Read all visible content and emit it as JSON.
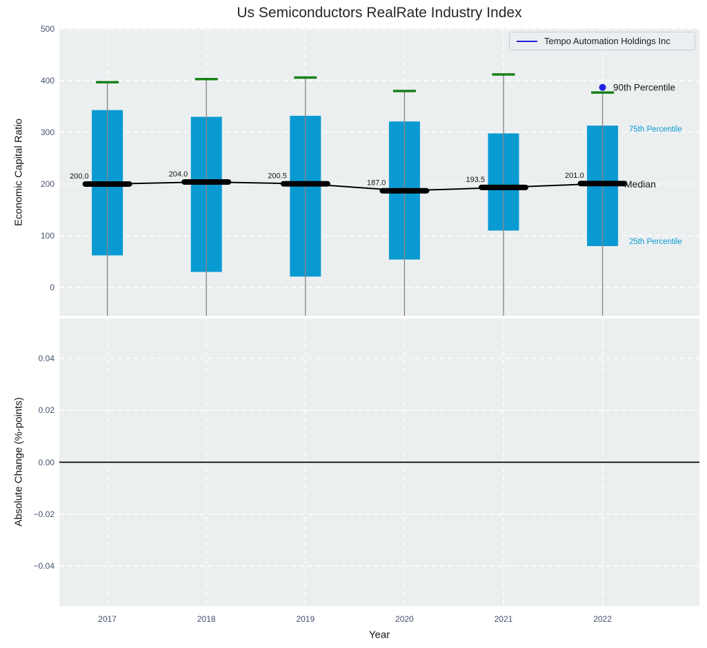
{
  "title": "Us Semiconductors RealRate Industry Index",
  "legend": {
    "label": "Tempo Automation Holdings Inc"
  },
  "colors": {
    "bar": "#0a9ad2",
    "cap_green": "#178017",
    "median_line": "#000000",
    "company_blue": "#2121e0",
    "plot_bg": "#eceff0",
    "grid_white": "#ffffff",
    "whisker_gray": "#878787",
    "tick_text": "#42506b",
    "zero_line": "#000000"
  },
  "chart_data": [
    {
      "type": "bar",
      "subtype": "percentile-box-bars",
      "title": "Us Semiconductors RealRate Industry Index",
      "ylabel": "Economic Capital Ratio",
      "ylim": [
        -54.7,
        501.3
      ],
      "yticks": [
        0,
        100,
        200,
        300,
        400,
        500
      ],
      "xlim": [
        -0.485,
        5.978
      ],
      "grid": "white-dashed",
      "categories": [
        "2017",
        "2018",
        "2019",
        "2020",
        "2021",
        "2022"
      ],
      "series": [
        {
          "name": "90th Percentile",
          "values": [
            397,
            403,
            406,
            380,
            412,
            377
          ]
        },
        {
          "name": "75th Percentile",
          "values": [
            343,
            330,
            332,
            321,
            298,
            313
          ]
        },
        {
          "name": "Median",
          "values": [
            200.0,
            204.0,
            200.5,
            187.0,
            193.5,
            201.0
          ]
        },
        {
          "name": "25th Percentile",
          "values": [
            62,
            30,
            21,
            54,
            110,
            80
          ]
        }
      ],
      "median_labels": [
        "200.0",
        "204.0",
        "200.5",
        "187.0",
        "193.5",
        "201.0"
      ],
      "company_marker": {
        "name": "Tempo Automation Holdings Inc",
        "category": "2022",
        "value": 387
      },
      "right_labels": {
        "p90": "90th Percentile",
        "p75": "75th Percentile",
        "median": "Median",
        "p25": "25th Percentile"
      },
      "legend_position": "upper right"
    },
    {
      "type": "line",
      "subtype": "zero-baseline",
      "ylabel": "Absolute Change (%-points)",
      "xlabel": "Year",
      "ylim": [
        -0.0553,
        0.0553
      ],
      "yticks": [
        -0.04,
        -0.02,
        0.0,
        0.02,
        0.04
      ],
      "xlim": [
        -0.485,
        5.978
      ],
      "grid": "white-dashed",
      "categories": [
        "2017",
        "2018",
        "2019",
        "2020",
        "2021",
        "2022"
      ],
      "zero_line": 0.0
    }
  ]
}
